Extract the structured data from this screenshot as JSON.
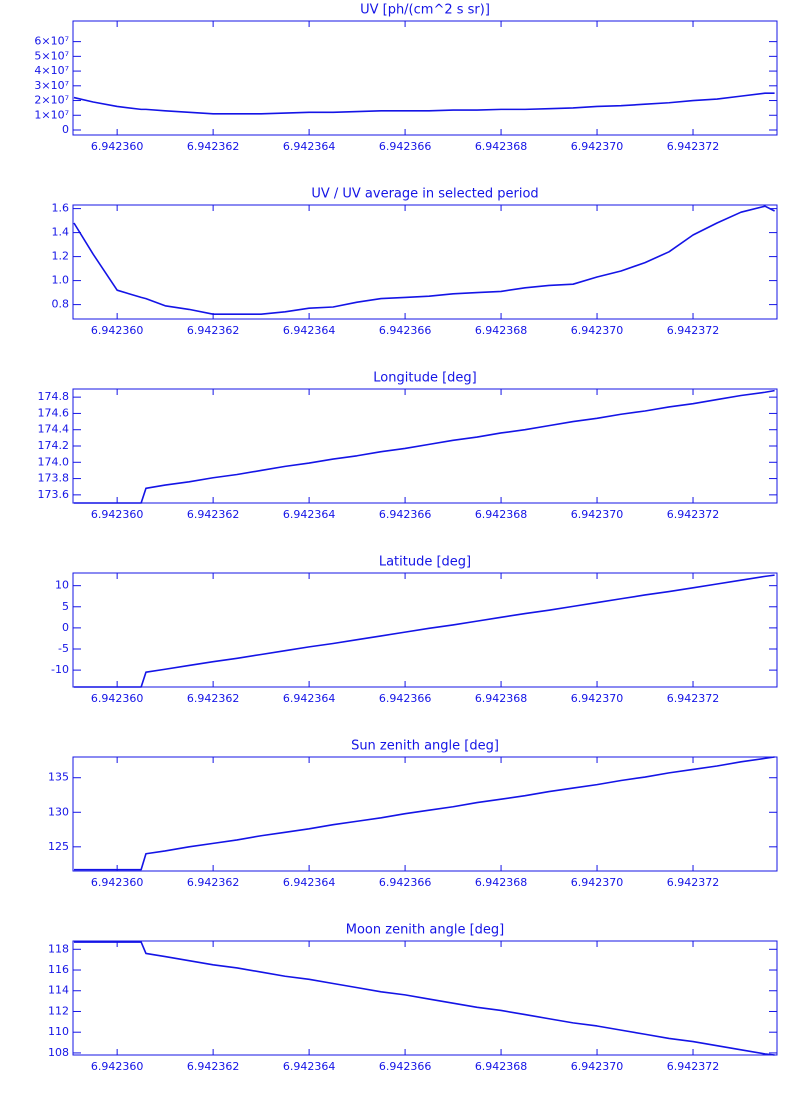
{
  "chart_data": [
    {
      "type": "line",
      "title": "UV [ph/(cm^2 s sr)]",
      "color": "#1414e6",
      "x": [
        6.9423591,
        6.9423595,
        6.94236,
        6.9423605,
        6.9423606,
        6.942361,
        6.9423615,
        6.942362,
        6.9423625,
        6.942363,
        6.9423635,
        6.942364,
        6.9423645,
        6.942365,
        6.9423655,
        6.942366,
        6.9423665,
        6.942367,
        6.9423675,
        6.942368,
        6.9423685,
        6.942369,
        6.9423695,
        6.94237,
        6.9423705,
        6.942371,
        6.9423715,
        6.942372,
        6.9423725,
        6.942373,
        6.9423735,
        6.9423737
      ],
      "values": [
        22000000,
        19000000,
        16000000,
        14000000,
        14000000,
        13000000,
        12000000,
        11000000,
        11000000,
        11000000,
        11500000,
        12000000,
        12000000,
        12500000,
        13000000,
        13000000,
        13000000,
        13500000,
        13500000,
        14000000,
        14000000,
        14500000,
        15000000,
        16000000,
        16500000,
        17500000,
        18500000,
        20000000,
        21000000,
        23000000,
        25000000,
        25000000
      ],
      "xlim": [
        6.94235908,
        6.94237375
      ],
      "xticks": [
        {
          "value": 6.94236,
          "label": "6.942360"
        },
        6.942362,
        6.942364,
        6.942366,
        6.942368,
        {
          "value": 6.94237,
          "label": "6.942370"
        },
        6.942372
      ],
      "ylim": [
        -3400000,
        74000000
      ],
      "yticks": [
        0,
        {
          "value": 10000000,
          "label": "1×10⁷"
        },
        {
          "value": 20000000,
          "label": "2×10⁷"
        },
        {
          "value": 30000000,
          "label": "3×10⁷"
        },
        {
          "value": 40000000,
          "label": "4×10⁷"
        },
        {
          "value": 50000000,
          "label": "5×10⁷"
        },
        {
          "value": 60000000,
          "label": "6×10⁷"
        }
      ]
    },
    {
      "type": "line",
      "title": "UV / UV average in selected period",
      "color": "#1414e6",
      "x": [
        6.9423591,
        6.9423595,
        6.94236,
        6.9423605,
        6.9423606,
        6.942361,
        6.9423615,
        6.942362,
        6.9423625,
        6.942363,
        6.9423635,
        6.942364,
        6.9423645,
        6.942365,
        6.9423655,
        6.942366,
        6.9423665,
        6.942367,
        6.9423675,
        6.942368,
        6.9423685,
        6.942369,
        6.9423695,
        6.94237,
        6.9423705,
        6.942371,
        6.9423715,
        6.942372,
        6.9423725,
        6.942373,
        6.9423735,
        6.9423737
      ],
      "values": [
        1.48,
        1.22,
        0.92,
        0.86,
        0.85,
        0.79,
        0.76,
        0.72,
        0.72,
        0.72,
        0.74,
        0.77,
        0.78,
        0.82,
        0.85,
        0.86,
        0.87,
        0.89,
        0.9,
        0.91,
        0.94,
        0.96,
        0.97,
        1.03,
        1.08,
        1.15,
        1.24,
        1.38,
        1.48,
        1.57,
        1.62,
        1.58
      ],
      "xlim": [
        6.94235908,
        6.94237375
      ],
      "xticks": [
        {
          "value": 6.94236,
          "label": "6.942360"
        },
        6.942362,
        6.942364,
        6.942366,
        6.942368,
        {
          "value": 6.94237,
          "label": "6.942370"
        },
        6.942372
      ],
      "ylim": [
        0.68,
        1.63
      ],
      "yticks": [
        0.8,
        {
          "value": 1,
          "label": "1.0"
        },
        1.2,
        1.4,
        1.6
      ]
    },
    {
      "type": "line",
      "title": "Longitude [deg]",
      "color": "#1414e6",
      "x": [
        6.9423591,
        6.9423595,
        6.94236,
        6.9423605,
        6.9423606,
        6.942361,
        6.9423615,
        6.942362,
        6.9423625,
        6.942363,
        6.9423635,
        6.942364,
        6.9423645,
        6.942365,
        6.9423655,
        6.942366,
        6.9423665,
        6.942367,
        6.9423675,
        6.942368,
        6.9423685,
        6.942369,
        6.9423695,
        6.94237,
        6.9423705,
        6.942371,
        6.9423715,
        6.942372,
        6.9423725,
        6.942373,
        6.9423735,
        6.9423737
      ],
      "values": [
        173.5,
        173.5,
        173.5,
        173.5,
        173.68,
        173.72,
        173.76,
        173.81,
        173.85,
        173.9,
        173.95,
        173.99,
        174.04,
        174.08,
        174.13,
        174.17,
        174.22,
        174.27,
        174.31,
        174.36,
        174.4,
        174.45,
        174.5,
        174.54,
        174.59,
        174.63,
        174.68,
        174.72,
        174.77,
        174.82,
        174.86,
        174.88
      ],
      "xlim": [
        6.94235908,
        6.94237375
      ],
      "xticks": [
        {
          "value": 6.94236,
          "label": "6.942360"
        },
        6.942362,
        6.942364,
        6.942366,
        6.942368,
        {
          "value": 6.94237,
          "label": "6.942370"
        },
        6.942372
      ],
      "ylim": [
        173.5,
        174.9
      ],
      "yticks": [
        173.6,
        173.8,
        {
          "value": 174,
          "label": "174.0"
        },
        174.2,
        174.4,
        174.6,
        174.8
      ]
    },
    {
      "type": "line",
      "title": "Latitude [deg]",
      "color": "#1414e6",
      "x": [
        6.9423591,
        6.9423595,
        6.94236,
        6.9423605,
        6.9423606,
        6.942361,
        6.9423615,
        6.942362,
        6.9423625,
        6.942363,
        6.9423635,
        6.942364,
        6.9423645,
        6.942365,
        6.9423655,
        6.942366,
        6.9423665,
        6.942367,
        6.9423675,
        6.942368,
        6.9423685,
        6.942369,
        6.9423695,
        6.94237,
        6.9423705,
        6.942371,
        6.9423715,
        6.942372,
        6.9423725,
        6.942373,
        6.9423735,
        6.9423737
      ],
      "values": [
        -14,
        -14,
        -14,
        -14,
        -10.5,
        -9.8,
        -8.9,
        -8,
        -7.2,
        -6.3,
        -5.4,
        -4.5,
        -3.7,
        -2.8,
        -1.9,
        -1,
        -0.1,
        0.7,
        1.6,
        2.5,
        3.4,
        4.2,
        5.1,
        6,
        6.9,
        7.8,
        8.6,
        9.5,
        10.4,
        11.3,
        12.2,
        12.5
      ],
      "xlim": [
        6.94235908,
        6.94237375
      ],
      "xticks": [
        {
          "value": 6.94236,
          "label": "6.942360"
        },
        6.942362,
        6.942364,
        6.942366,
        6.942368,
        {
          "value": 6.94237,
          "label": "6.942370"
        },
        6.942372
      ],
      "ylim": [
        -14,
        13
      ],
      "yticks": [
        -10,
        -5,
        0,
        5,
        10
      ]
    },
    {
      "type": "line",
      "title": "Sun zenith angle [deg]",
      "color": "#1414e6",
      "x": [
        6.9423591,
        6.9423595,
        6.94236,
        6.9423605,
        6.9423606,
        6.942361,
        6.9423615,
        6.942362,
        6.9423625,
        6.942363,
        6.9423635,
        6.942364,
        6.9423645,
        6.942365,
        6.9423655,
        6.942366,
        6.9423665,
        6.942367,
        6.9423675,
        6.942368,
        6.9423685,
        6.942369,
        6.9423695,
        6.94237,
        6.9423705,
        6.942371,
        6.9423715,
        6.942372,
        6.9423725,
        6.942373,
        6.9423735,
        6.9423737
      ],
      "values": [
        121.7,
        121.7,
        121.7,
        121.7,
        124,
        124.4,
        125,
        125.5,
        126,
        126.6,
        127.1,
        127.6,
        128.2,
        128.7,
        129.2,
        129.8,
        130.3,
        130.8,
        131.4,
        131.9,
        132.4,
        133,
        133.5,
        134,
        134.6,
        135.1,
        135.7,
        136.2,
        136.7,
        137.3,
        137.8,
        138
      ],
      "xlim": [
        6.94235908,
        6.94237375
      ],
      "xticks": [
        {
          "value": 6.94236,
          "label": "6.942360"
        },
        6.942362,
        6.942364,
        6.942366,
        6.942368,
        {
          "value": 6.94237,
          "label": "6.942370"
        },
        6.942372
      ],
      "ylim": [
        121.5,
        138
      ],
      "yticks": [
        125,
        130,
        135
      ]
    },
    {
      "type": "line",
      "title": "Moon zenith angle [deg]",
      "color": "#1414e6",
      "x": [
        6.9423591,
        6.9423595,
        6.94236,
        6.9423605,
        6.9423606,
        6.942361,
        6.9423615,
        6.942362,
        6.9423625,
        6.942363,
        6.9423635,
        6.942364,
        6.9423645,
        6.942365,
        6.9423655,
        6.942366,
        6.9423665,
        6.942367,
        6.9423675,
        6.942368,
        6.9423685,
        6.942369,
        6.9423695,
        6.94237,
        6.9423705,
        6.942371,
        6.9423715,
        6.942372,
        6.9423725,
        6.942373,
        6.9423735,
        6.9423737
      ],
      "values": [
        118.7,
        118.7,
        118.7,
        118.7,
        117.6,
        117.3,
        116.9,
        116.5,
        116.2,
        115.8,
        115.4,
        115.1,
        114.7,
        114.3,
        113.9,
        113.6,
        113.2,
        112.8,
        112.4,
        112.1,
        111.7,
        111.3,
        110.9,
        110.6,
        110.2,
        109.8,
        109.4,
        109.1,
        108.7,
        108.3,
        107.9,
        107.8
      ],
      "xlim": [
        6.94235908,
        6.94237375
      ],
      "xticks": [
        {
          "value": 6.94236,
          "label": "6.942360"
        },
        6.942362,
        6.942364,
        6.942366,
        6.942368,
        {
          "value": 6.94237,
          "label": "6.942370"
        },
        6.942372
      ],
      "ylim": [
        107.8,
        118.8
      ],
      "yticks": [
        108,
        110,
        112,
        114,
        116,
        118
      ]
    }
  ]
}
